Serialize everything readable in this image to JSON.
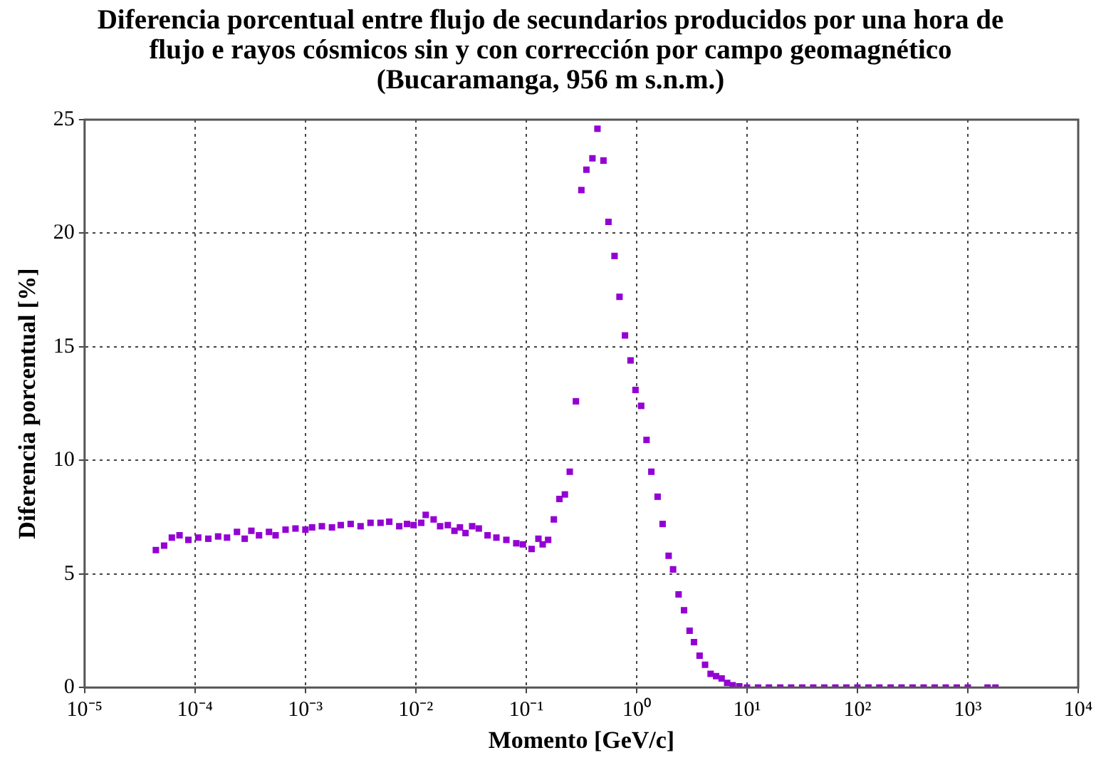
{
  "chart_data": {
    "type": "scatter",
    "title": "Diferencia porcentual entre flujo de secundarios producidos por una hora de flujo e rayos cósmicos sin y con corrección por campo geomagnético (Bucaramanga, 956 m s.n.m.)",
    "xlabel": "Momento [GeV/c]",
    "ylabel": "Diferencia porcentual [%]",
    "log": "x",
    "grid": true,
    "legend": false,
    "marker": "square",
    "xlim": [
      1e-05,
      10000.0
    ],
    "xticks": [
      {
        "value": 1e-05,
        "label": "10⁻⁵"
      },
      {
        "value": 0.0001,
        "label": "10⁻⁴"
      },
      {
        "value": 0.001,
        "label": "10⁻³"
      },
      {
        "value": 0.01,
        "label": "10⁻²"
      },
      {
        "value": 0.1,
        "label": "10⁻¹"
      },
      {
        "value": 1,
        "label": "10⁰"
      },
      {
        "value": 10,
        "label": "10¹"
      },
      {
        "value": 100,
        "label": "10²"
      },
      {
        "value": 1000,
        "label": "10³"
      },
      {
        "value": 10000,
        "label": "10⁴"
      }
    ],
    "ylim": [
      0,
      25
    ],
    "yticks": [
      0,
      5,
      10,
      15,
      20,
      25
    ],
    "series": [
      {
        "color": "#9400d3",
        "x": [
          4.42e-05,
          5.25e-05,
          6.17e-05,
          7.24e-05,
          8.71e-05,
          0.000107,
          0.000132,
          0.000162,
          0.000195,
          0.00024,
          0.000282,
          0.000324,
          0.00038,
          0.000468,
          0.000537,
          0.000661,
          0.000813,
          0.001,
          0.00115,
          0.00141,
          0.00174,
          0.00209,
          0.00257,
          0.00316,
          0.00389,
          0.00479,
          0.00575,
          0.00708,
          0.00832,
          0.00955,
          0.0112,
          0.0123,
          0.0145,
          0.0166,
          0.0195,
          0.0224,
          0.0251,
          0.0282,
          0.0324,
          0.0372,
          0.0447,
          0.0537,
          0.0661,
          0.0813,
          0.0933,
          0.112,
          0.129,
          0.141,
          0.158,
          0.178,
          0.2,
          0.224,
          0.248,
          0.282,
          0.316,
          0.351,
          0.398,
          0.442,
          0.501,
          0.556,
          0.631,
          0.7,
          0.785,
          0.881,
          0.977,
          1.1,
          1.23,
          1.36,
          1.55,
          1.72,
          1.95,
          2.14,
          2.4,
          2.69,
          3.02,
          3.31,
          3.72,
          4.17,
          4.68,
          5.25,
          5.89,
          6.61,
          7.41,
          8.51,
          10,
          12.6,
          15.8,
          20,
          25.1,
          31.6,
          39.8,
          50.1,
          63.1,
          79.4,
          100,
          126,
          158,
          200,
          251,
          316,
          398,
          501,
          631,
          794,
          1000,
          1510,
          1780
        ],
        "values": [
          6.05,
          6.25,
          6.6,
          6.7,
          6.5,
          6.6,
          6.55,
          6.65,
          6.6,
          6.85,
          6.55,
          6.9,
          6.7,
          6.85,
          6.7,
          6.95,
          7.0,
          6.95,
          7.05,
          7.1,
          7.05,
          7.15,
          7.2,
          7.1,
          7.25,
          7.25,
          7.3,
          7.1,
          7.2,
          7.15,
          7.25,
          7.6,
          7.4,
          7.1,
          7.15,
          6.9,
          7.05,
          6.8,
          7.1,
          7.0,
          6.7,
          6.6,
          6.5,
          6.35,
          6.3,
          6.1,
          6.55,
          6.3,
          6.5,
          7.4,
          8.3,
          8.5,
          9.5,
          12.6,
          21.9,
          22.8,
          23.3,
          24.6,
          23.2,
          20.5,
          19.0,
          17.2,
          15.5,
          14.4,
          13.1,
          12.4,
          10.9,
          9.5,
          8.4,
          7.2,
          5.8,
          5.2,
          4.1,
          3.4,
          2.5,
          2.0,
          1.4,
          1.0,
          0.6,
          0.5,
          0.4,
          0.2,
          0.1,
          0.05,
          0,
          0,
          0,
          0,
          0,
          0,
          0,
          0,
          0,
          0,
          0,
          0,
          0,
          0,
          0,
          0,
          0,
          0,
          0,
          0,
          0,
          0,
          0
        ]
      }
    ]
  }
}
